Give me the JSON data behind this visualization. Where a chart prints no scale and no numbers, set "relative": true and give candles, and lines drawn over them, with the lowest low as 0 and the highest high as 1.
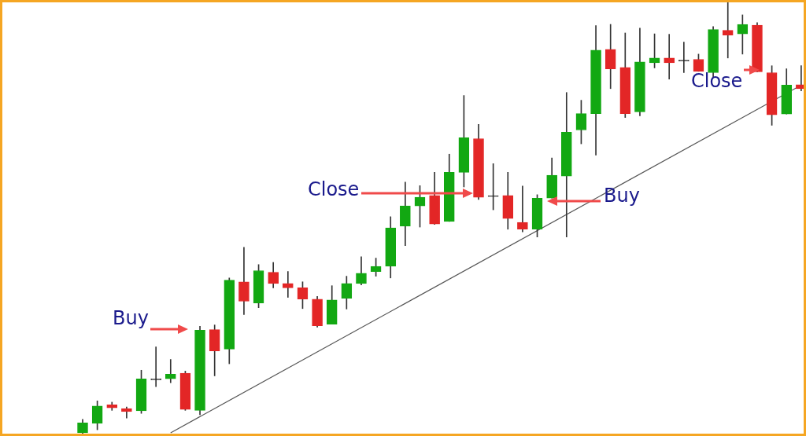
{
  "chart_data": {
    "type": "candlestick",
    "relative": true,
    "categories": [
      null,
      null,
      null,
      null,
      null,
      null,
      null,
      null,
      null,
      null,
      null,
      null,
      null,
      null,
      null,
      null,
      null,
      null,
      null,
      null,
      null,
      null,
      null,
      null,
      null,
      null,
      null,
      null,
      null,
      null,
      null,
      null,
      null,
      null,
      null,
      null,
      null,
      null,
      null,
      null,
      null,
      null,
      null,
      null,
      null,
      null,
      null,
      null,
      null,
      null
    ],
    "ohlc": [
      [
        0.002,
        0.033,
        0,
        0.025
      ],
      [
        0.024,
        0.076,
        0.009,
        0.064
      ],
      [
        0.067,
        0.073,
        0.054,
        0.06
      ],
      [
        0.058,
        0.062,
        0.036,
        0.051
      ],
      [
        0.053,
        0.147,
        0.047,
        0.127
      ],
      [
        0.125,
        0.201,
        0.109,
        0.125
      ],
      [
        0.127,
        0.172,
        0.118,
        0.138
      ],
      [
        0.14,
        0.145,
        0.054,
        0.056
      ],
      [
        0.054,
        0.249,
        0.044,
        0.24
      ],
      [
        0.241,
        0.252,
        0.134,
        0.192
      ],
      [
        0.196,
        0.361,
        0.162,
        0.356
      ],
      [
        0.352,
        0.432,
        0.276,
        0.307
      ],
      [
        0.303,
        0.392,
        0.292,
        0.378
      ],
      [
        0.374,
        0.397,
        0.338,
        0.348
      ],
      [
        0.348,
        0.376,
        0.316,
        0.338
      ],
      [
        0.338,
        0.352,
        0.29,
        0.312
      ],
      [
        0.312,
        0.318,
        0.247,
        0.25
      ],
      [
        0.254,
        0.343,
        0.254,
        0.31
      ],
      [
        0.314,
        0.365,
        0.289,
        0.348
      ],
      [
        0.348,
        0.41,
        0.345,
        0.372
      ],
      [
        0.376,
        0.407,
        0.365,
        0.388
      ],
      [
        0.388,
        0.503,
        0.361,
        0.477
      ],
      [
        0.481,
        0.583,
        0.436,
        0.528
      ],
      [
        0.528,
        0.575,
        0.479,
        0.548
      ],
      [
        0.552,
        0.606,
        0.485,
        0.486
      ],
      [
        0.492,
        0.648,
        0.492,
        0.606
      ],
      [
        0.606,
        0.784,
        0.572,
        0.686
      ],
      [
        0.684,
        0.717,
        0.543,
        0.548
      ],
      [
        0.55,
        0.626,
        0.519,
        0.55
      ],
      [
        0.552,
        0.606,
        0.474,
        0.499
      ],
      [
        0.49,
        0.574,
        0.468,
        0.474
      ],
      [
        0.474,
        0.554,
        0.456,
        0.546
      ],
      [
        0.546,
        0.639,
        0.546,
        0.599
      ],
      [
        0.597,
        0.791,
        0.456,
        0.699
      ],
      [
        0.704,
        0.773,
        0.672,
        0.742
      ],
      [
        0.742,
        0.946,
        0.646,
        0.889
      ],
      [
        0.891,
        0.949,
        0.8,
        0.846
      ],
      [
        0.849,
        0.929,
        0.733,
        0.742
      ],
      [
        0.746,
        0.94,
        0.737,
        0.862
      ],
      [
        0.86,
        0.927,
        0.848,
        0.871
      ],
      [
        0.871,
        0.926,
        0.822,
        0.86
      ],
      [
        0.864,
        0.908,
        0.837,
        0.864
      ],
      [
        0.868,
        0.88,
        0.84,
        0.84
      ],
      [
        0.837,
        0.944,
        0.826,
        0.937
      ],
      [
        0.935,
        1,
        0.871,
        0.924
      ],
      [
        0.927,
        0.971,
        0.88,
        0.949
      ],
      [
        0.947,
        0.953,
        0.839,
        0.839
      ],
      [
        0.837,
        0.853,
        0.715,
        0.739
      ],
      [
        0.741,
        0.846,
        0.741,
        0.808
      ],
      [
        0.809,
        0.853,
        0.795,
        0.8
      ]
    ],
    "colors": [
      "#12a812",
      "#12a812",
      "#e32626",
      "#e32626",
      "#12a812",
      "#222222",
      "#12a812",
      "#e32626",
      "#12a812",
      "#e32626",
      "#12a812",
      "#e32626",
      "#12a812",
      "#e32626",
      "#e32626",
      "#e32626",
      "#e32626",
      "#12a812",
      "#12a812",
      "#12a812",
      "#12a812",
      "#12a812",
      "#12a812",
      "#12a812",
      "#e32626",
      "#12a812",
      "#12a812",
      "#e32626",
      "#222222",
      "#e32626",
      "#e32626",
      "#12a812",
      "#12a812",
      "#12a812",
      "#12a812",
      "#12a812",
      "#e32626",
      "#e32626",
      "#12a812",
      "#12a812",
      "#e32626",
      "#222222",
      "#e32626",
      "#12a812",
      "#e32626",
      "#12a812",
      "#e32626",
      "#e32626",
      "#12a812",
      "#e32626"
    ],
    "series": [
      {
        "type": "line",
        "values": [
          null,
          null,
          null,
          null,
          null,
          null,
          0.002,
          null,
          null,
          null,
          null,
          null,
          null,
          null,
          null,
          null,
          null,
          null,
          null,
          null,
          null,
          null,
          null,
          null,
          null,
          null,
          null,
          null,
          null,
          null,
          null,
          null,
          null,
          null,
          null,
          null,
          null,
          null,
          null,
          null,
          null,
          null,
          null,
          null,
          null,
          null,
          null,
          null,
          null,
          0.808
        ],
        "color": "#555555"
      }
    ],
    "annotations": [
      "Buy",
      "Close",
      "Buy",
      "Close"
    ]
  }
}
